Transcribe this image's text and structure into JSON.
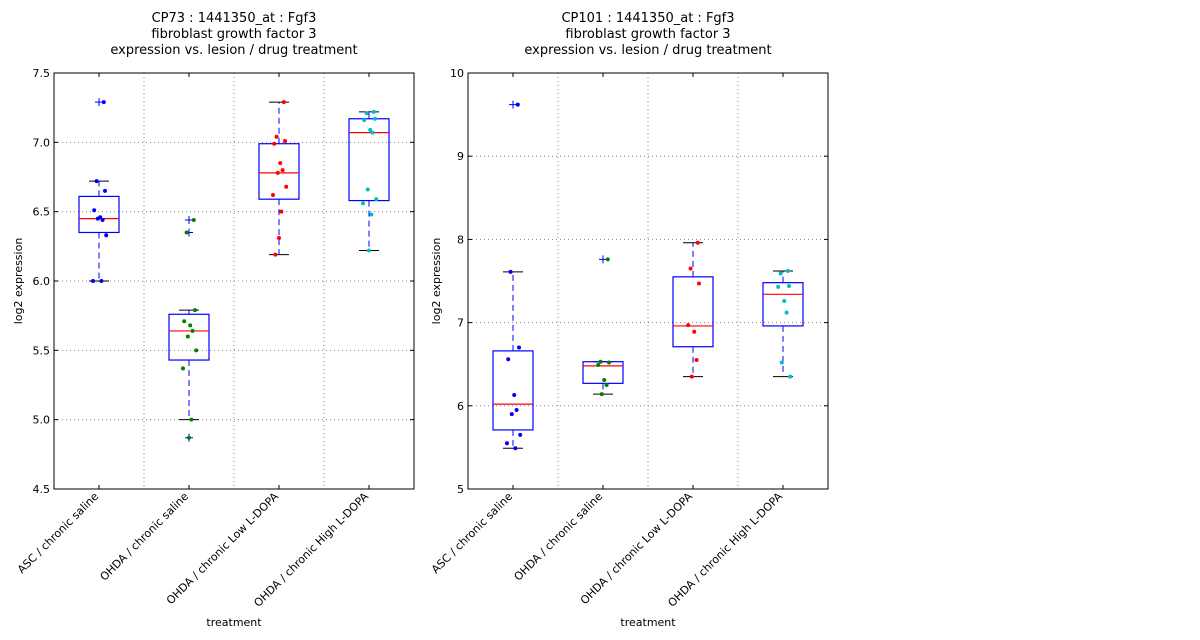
{
  "chart_data": [
    {
      "type": "box",
      "title_lines": [
        "CP73 : 1441350_at : Fgf3",
        "fibroblast growth factor 3",
        "expression vs. lesion / drug treatment"
      ],
      "xlabel": "treatment",
      "ylabel": "log2 expression",
      "ylim": [
        4.5,
        7.5
      ],
      "yticks": [
        "4.5",
        "5.0",
        "5.5",
        "6.0",
        "6.5",
        "7.0",
        "7.5"
      ],
      "ytick_values": [
        4.5,
        5.0,
        5.5,
        6.0,
        6.5,
        7.0,
        7.5
      ],
      "grid": true,
      "categories": [
        "ASC / chronic saline",
        "OHDA / chronic saline",
        "OHDA / chronic Low L-DOPA",
        "OHDA / chronic High L-DOPA"
      ],
      "series": [
        {
          "name": "ASC / chronic saline",
          "color": "#0000ff",
          "box": {
            "whislo": 6.0,
            "q1": 6.35,
            "med": 6.45,
            "q3": 6.61,
            "whishi": 6.72,
            "fliers": [
              7.29
            ]
          },
          "points": [
            7.29,
            6.72,
            6.65,
            6.51,
            6.46,
            6.44,
            6.45,
            6.33,
            6.0,
            6.0
          ]
        },
        {
          "name": "OHDA / chronic saline",
          "color": "#008000",
          "box": {
            "whislo": 5.0,
            "q1": 5.43,
            "med": 5.64,
            "q3": 5.76,
            "whishi": 5.79,
            "fliers": [
              6.44,
              6.35,
              4.87
            ]
          },
          "points": [
            6.44,
            6.35,
            5.79,
            5.71,
            5.68,
            5.64,
            5.6,
            5.5,
            5.37,
            5.0,
            4.87
          ]
        },
        {
          "name": "OHDA / chronic Low L-DOPA",
          "color": "#ff0000",
          "box": {
            "whislo": 6.19,
            "q1": 6.59,
            "med": 6.78,
            "q3": 6.99,
            "whishi": 7.29,
            "fliers": []
          },
          "points": [
            7.29,
            7.04,
            7.01,
            6.99,
            6.85,
            6.8,
            6.78,
            6.68,
            6.62,
            6.5,
            6.31,
            6.19
          ]
        },
        {
          "name": "OHDA / chronic High L-DOPA",
          "color": "#00bfbf",
          "box": {
            "whislo": 6.22,
            "q1": 6.58,
            "med": 7.07,
            "q3": 7.17,
            "whishi": 7.22,
            "fliers": []
          },
          "points": [
            7.22,
            7.21,
            7.17,
            7.16,
            7.09,
            7.07,
            6.66,
            6.59,
            6.56,
            6.48,
            6.22
          ]
        }
      ]
    },
    {
      "type": "box",
      "title_lines": [
        "CP101 : 1441350_at : Fgf3",
        "fibroblast growth factor 3",
        "expression vs. lesion / drug treatment"
      ],
      "xlabel": "treatment",
      "ylabel": "log2 expression",
      "ylim": [
        5,
        10
      ],
      "yticks": [
        "5",
        "6",
        "7",
        "8",
        "9",
        "10"
      ],
      "ytick_values": [
        5,
        6,
        7,
        8,
        9,
        10
      ],
      "grid": true,
      "categories": [
        "ASC / chronic saline",
        "OHDA / chronic saline",
        "OHDA / chronic Low L-DOPA",
        "OHDA / chronic High L-DOPA"
      ],
      "series": [
        {
          "name": "ASC / chronic saline",
          "color": "#0000ff",
          "box": {
            "whislo": 5.49,
            "q1": 5.71,
            "med": 6.02,
            "q3": 6.66,
            "whishi": 7.61,
            "fliers": [
              9.62
            ]
          },
          "points": [
            9.62,
            7.61,
            6.7,
            6.56,
            6.13,
            5.95,
            5.9,
            5.65,
            5.55,
            5.49
          ]
        },
        {
          "name": "OHDA / chronic saline",
          "color": "#008000",
          "box": {
            "whislo": 6.14,
            "q1": 6.27,
            "med": 6.48,
            "q3": 6.53,
            "whishi": 6.53,
            "fliers": [
              7.76
            ]
          },
          "points": [
            7.76,
            6.53,
            6.52,
            6.49,
            6.31,
            6.25,
            6.14
          ]
        },
        {
          "name": "OHDA / chronic Low L-DOPA",
          "color": "#ff0000",
          "box": {
            "whislo": 6.35,
            "q1": 6.71,
            "med": 6.96,
            "q3": 7.55,
            "whishi": 7.96,
            "fliers": []
          },
          "points": [
            7.96,
            7.65,
            7.47,
            6.97,
            6.89,
            6.55,
            6.35
          ]
        },
        {
          "name": "OHDA / chronic High L-DOPA",
          "color": "#00bfbf",
          "box": {
            "whislo": 6.35,
            "q1": 6.96,
            "med": 7.34,
            "q3": 7.48,
            "whishi": 7.62,
            "fliers": []
          },
          "points": [
            7.62,
            7.59,
            7.44,
            7.43,
            7.26,
            7.12,
            6.52,
            6.35
          ]
        }
      ]
    }
  ]
}
